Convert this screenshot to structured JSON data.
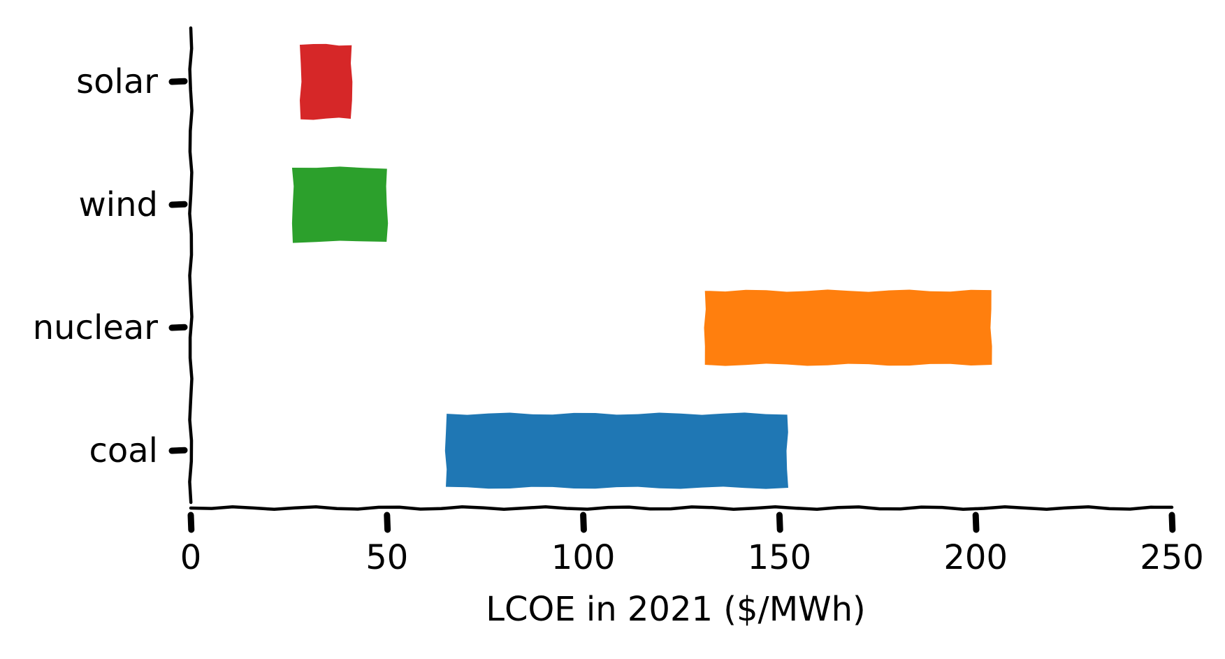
{
  "chart_data": {
    "type": "bar",
    "orientation": "horizontal",
    "style": "xkcd",
    "title": "",
    "xlabel": "LCOE in 2021 ($/MWh)",
    "ylabel": "",
    "xlim": [
      0,
      250
    ],
    "xticks": [
      "0",
      "50",
      "100",
      "150",
      "200",
      "250"
    ],
    "xtick_values": [
      0,
      50,
      100,
      150,
      200,
      250
    ],
    "grid": false,
    "legend": "none",
    "categories": [
      "coal",
      "nuclear",
      "wind",
      "solar"
    ],
    "ranges": [
      {
        "category": "coal",
        "low": 65,
        "high": 152,
        "color": "#1f77b4"
      },
      {
        "category": "nuclear",
        "low": 131,
        "high": 204,
        "color": "#ff7f0e"
      },
      {
        "category": "wind",
        "low": 26,
        "high": 50,
        "color": "#2ca02c"
      },
      {
        "category": "solar",
        "low": 28,
        "high": 41,
        "color": "#d62728"
      }
    ]
  }
}
